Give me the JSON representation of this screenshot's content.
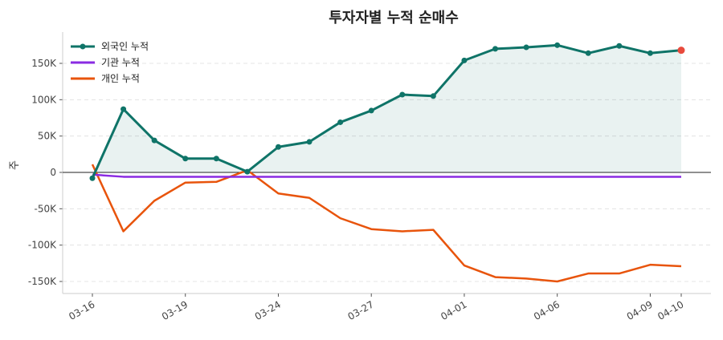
{
  "chart_data": {
    "type": "line",
    "title": "투자자별 누적 순매수",
    "xlabel": "",
    "ylabel": "주",
    "x": [
      "03-16",
      "03-17",
      "03-18",
      "03-19",
      "03-20",
      "03-23",
      "03-24",
      "03-25",
      "03-26",
      "03-27",
      "03-30",
      "03-31",
      "04-01",
      "04-02",
      "04-03",
      "04-06",
      "04-07",
      "04-08",
      "04-09",
      "04-10"
    ],
    "xticks": [
      "03-16",
      "03-19",
      "03-24",
      "03-27",
      "04-01",
      "04-06",
      "04-09",
      "04-10"
    ],
    "yticks": [
      -150000,
      -100000,
      -50000,
      0,
      50000,
      100000,
      150000
    ],
    "ytick_labels": [
      "-150K",
      "-100K",
      "-50K",
      "0",
      "50K",
      "100K",
      "150K"
    ],
    "ylim": [
      -165000,
      190000
    ],
    "grid": "y-dashed",
    "legend": "top-left",
    "series": [
      {
        "name": "외국인 누적",
        "color": "#0f7468",
        "markers": true,
        "fill": true,
        "values": [
          -8000,
          87000,
          44000,
          19000,
          19000,
          1000,
          35000,
          42000,
          69000,
          85000,
          107000,
          105000,
          154000,
          170000,
          172000,
          175000,
          164000,
          174000,
          164000,
          168000
        ]
      },
      {
        "name": "기관 누적",
        "color": "#8a2be2",
        "markers": false,
        "values": [
          -3000,
          -6000,
          -6000,
          -6000,
          -6000,
          -6000,
          -6000,
          -6000,
          -6000,
          -6000,
          -6000,
          -6000,
          -6000,
          -6000,
          -6000,
          -6000,
          -6000,
          -6000,
          -6000,
          -6000
        ]
      },
      {
        "name": "개인 누적",
        "color": "#e8540c",
        "markers": false,
        "values": [
          11000,
          -81000,
          -39000,
          -14000,
          -13000,
          3000,
          -29000,
          -35000,
          -63000,
          -78000,
          -81000,
          -79000,
          -128000,
          -144000,
          -146000,
          -150000,
          -139000,
          -139000,
          -127000,
          -129000
        ]
      }
    ],
    "last_point_color": "#e84a3c"
  }
}
